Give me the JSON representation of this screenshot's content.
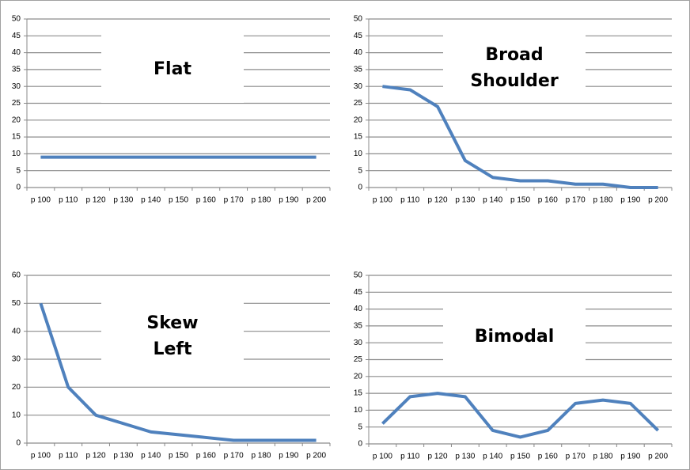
{
  "chart_data": [
    {
      "type": "line",
      "title": "Flat",
      "categories": [
        "p 100",
        "p 110",
        "p 120",
        "p 130",
        "p 140",
        "p 150",
        "p 160",
        "p 170",
        "p 180",
        "p 190",
        "p 200"
      ],
      "values": [
        9,
        9,
        9,
        9,
        9,
        9,
        9,
        9,
        9,
        9,
        9
      ],
      "color": "#4f81bd",
      "ylim": [
        0,
        50
      ],
      "yticks": [
        0,
        5,
        10,
        15,
        20,
        25,
        30,
        35,
        40,
        45,
        50
      ],
      "grid": true
    },
    {
      "type": "line",
      "title": "Broad Shoulder",
      "categories": [
        "p 100",
        "p 110",
        "p 120",
        "p 130",
        "p 140",
        "p 150",
        "p 160",
        "p 170",
        "p 180",
        "p 190",
        "p 200"
      ],
      "values": [
        30,
        29,
        24,
        8,
        3,
        2,
        2,
        1,
        1,
        0,
        0
      ],
      "color": "#4f81bd",
      "ylim": [
        0,
        50
      ],
      "yticks": [
        0,
        5,
        10,
        15,
        20,
        25,
        30,
        35,
        40,
        45,
        50
      ],
      "grid": true
    },
    {
      "type": "line",
      "title": "Skew Left",
      "categories": [
        "p 100",
        "p 110",
        "p 120",
        "p 130",
        "p 140",
        "p 150",
        "p 160",
        "p 170",
        "p 180",
        "p 190",
        "p 200"
      ],
      "values": [
        50,
        20,
        10,
        7,
        4,
        3,
        2,
        1,
        1,
        1,
        1
      ],
      "color": "#4f81bd",
      "ylim": [
        0,
        60
      ],
      "yticks": [
        0,
        10,
        20,
        30,
        40,
        50,
        60
      ],
      "grid": true
    },
    {
      "type": "line",
      "title": "Bimodal",
      "categories": [
        "p 100",
        "p 110",
        "p 120",
        "p 130",
        "p 140",
        "p 150",
        "p 160",
        "p 170",
        "p 180",
        "p 190",
        "p 200"
      ],
      "values": [
        6,
        14,
        15,
        14,
        4,
        2,
        4,
        12,
        13,
        12,
        4
      ],
      "color": "#4f81bd",
      "ylim": [
        0,
        50
      ],
      "yticks": [
        0,
        5,
        10,
        15,
        20,
        25,
        30,
        35,
        40,
        45,
        50
      ],
      "grid": true
    }
  ]
}
